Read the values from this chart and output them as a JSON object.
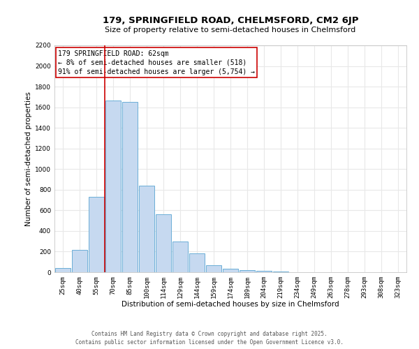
{
  "title": "179, SPRINGFIELD ROAD, CHELMSFORD, CM2 6JP",
  "subtitle": "Size of property relative to semi-detached houses in Chelmsford",
  "xlabel": "Distribution of semi-detached houses by size in Chelmsford",
  "ylabel": "Number of semi-detached properties",
  "bar_labels": [
    "25sqm",
    "40sqm",
    "55sqm",
    "70sqm",
    "85sqm",
    "100sqm",
    "114sqm",
    "129sqm",
    "144sqm",
    "159sqm",
    "174sqm",
    "189sqm",
    "204sqm",
    "219sqm",
    "234sqm",
    "249sqm",
    "263sqm",
    "278sqm",
    "293sqm",
    "308sqm",
    "323sqm"
  ],
  "bar_values": [
    40,
    220,
    730,
    1665,
    1650,
    840,
    560,
    300,
    180,
    70,
    35,
    20,
    15,
    5,
    3,
    2,
    1,
    0,
    0,
    0,
    0
  ],
  "bar_color": "#c6d9f0",
  "bar_edge_color": "#6baed6",
  "vline_color": "#cc0000",
  "vline_pos": 2.5,
  "annotation_title": "179 SPRINGFIELD ROAD: 62sqm",
  "annotation_line1": "← 8% of semi-detached houses are smaller (518)",
  "annotation_line2": "91% of semi-detached houses are larger (5,754) →",
  "annotation_box_edgecolor": "#cc0000",
  "ylim": [
    0,
    2200
  ],
  "yticks": [
    0,
    200,
    400,
    600,
    800,
    1000,
    1200,
    1400,
    1600,
    1800,
    2000,
    2200
  ],
  "bg_color": "#ffffff",
  "grid_color": "#e8e8e8",
  "title_fontsize": 9.5,
  "subtitle_fontsize": 8.0,
  "axis_label_fontsize": 7.5,
  "tick_fontsize": 6.5,
  "annotation_fontsize": 7.0,
  "footer_fontsize": 5.5,
  "footer_line1": "Contains HM Land Registry data © Crown copyright and database right 2025.",
  "footer_line2": "Contains public sector information licensed under the Open Government Licence v3.0."
}
